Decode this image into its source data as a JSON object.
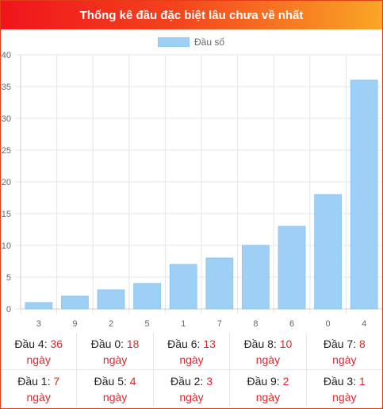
{
  "title": "Thống kê đầu đặc biệt lâu chưa về nhất",
  "chart_data": {
    "type": "bar",
    "legend": "Đầu số",
    "legend_position": "top",
    "grid": true,
    "categories": [
      "3",
      "9",
      "2",
      "5",
      "1",
      "7",
      "8",
      "6",
      "0",
      "4"
    ],
    "series": [
      {
        "name": "Đầu số",
        "values": [
          1,
          2,
          3,
          4,
          7,
          8,
          10,
          13,
          18,
          36
        ],
        "color": "#9ecff4"
      }
    ],
    "ylim": [
      0,
      40
    ],
    "yticks": [
      "0",
      "5",
      "10",
      "15",
      "20",
      "25",
      "30",
      "35",
      "40"
    ]
  },
  "stats": {
    "unit": "ngày",
    "rows": [
      [
        {
          "label": "Đầu 4:",
          "count": "36"
        },
        {
          "label": "Đầu 0:",
          "count": "18"
        },
        {
          "label": "Đầu 6:",
          "count": "13"
        },
        {
          "label": "Đầu 8:",
          "count": "10"
        },
        {
          "label": "Đầu 7:",
          "count": "8"
        }
      ],
      [
        {
          "label": "Đầu 1:",
          "count": "7"
        },
        {
          "label": "Đầu 5:",
          "count": "4"
        },
        {
          "label": "Đầu 2:",
          "count": "3"
        },
        {
          "label": "Đầu 9:",
          "count": "2"
        },
        {
          "label": "Đầu 3:",
          "count": "1"
        }
      ]
    ]
  }
}
